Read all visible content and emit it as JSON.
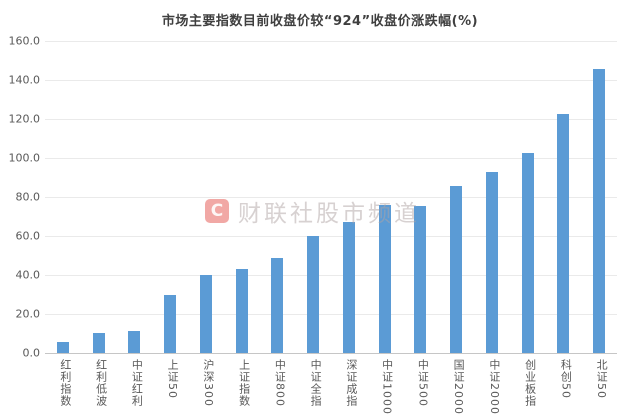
{
  "chart_data": {
    "type": "bar",
    "title": "市场主要指数目前收盘价较“924”收盘价涨跌幅(%)",
    "categories": [
      "红利指数",
      "红利低波",
      "中证红利",
      "上证50",
      "沪深300",
      "上证指数",
      "中证800",
      "中证全指",
      "深证成指",
      "中证1000",
      "中证500",
      "国证2000",
      "中证2000",
      "创业板指",
      "科创50",
      "北证50"
    ],
    "values": [
      5.5,
      10.4,
      11.3,
      29.5,
      40.2,
      43.2,
      48.9,
      60.0,
      67.2,
      76.0,
      75.4,
      85.6,
      92.8,
      102.7,
      122.5,
      145.8
    ],
    "xlabel": "",
    "ylabel": "",
    "ylim": [
      0,
      160
    ],
    "ytick_step": 20,
    "ytick_labels": [
      "0.0",
      "20.0",
      "40.0",
      "60.0",
      "80.0",
      "100.0",
      "120.0",
      "140.0",
      "160.0"
    ],
    "grid": true,
    "legend": "none",
    "bar_color": "#5b9bd5",
    "gridline_color": "#eaeaea",
    "axis_line_color": "#c6c6c6"
  },
  "watermark": {
    "logo_letter": "C",
    "logo_color": "#e2413a",
    "text": "财联社股市频道"
  }
}
